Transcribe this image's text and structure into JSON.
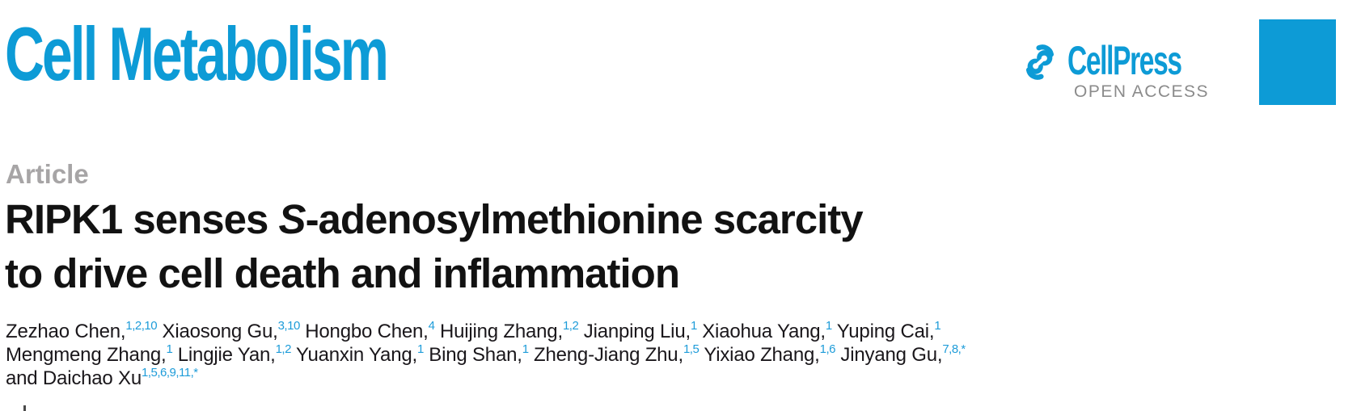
{
  "masthead": {
    "journal_title": "Cell Metabolism",
    "publisher": "CellPress",
    "open_access_label": "OPEN ACCESS"
  },
  "article": {
    "kicker": "Article",
    "title_line1_pre": "RIPK1 senses ",
    "title_line1_italic": "S",
    "title_line1_post": "-adenosylmethionine scarcity",
    "title_line2": "to drive cell death and inflammation"
  },
  "authors": {
    "lines": [
      [
        {
          "name": "Zezhao Chen,",
          "sup": "1,2,10"
        },
        {
          "name": "Xiaosong Gu,",
          "sup": "3,10"
        },
        {
          "name": "Hongbo Chen,",
          "sup": "4"
        },
        {
          "name": "Huijing Zhang,",
          "sup": "1,2"
        },
        {
          "name": "Jianping Liu,",
          "sup": "1"
        },
        {
          "name": "Xiaohua Yang,",
          "sup": "1"
        },
        {
          "name": "Yuping Cai,",
          "sup": "1"
        }
      ],
      [
        {
          "name": "Mengmeng Zhang,",
          "sup": "1"
        },
        {
          "name": "Lingjie Yan,",
          "sup": "1,2"
        },
        {
          "name": "Yuanxin Yang,",
          "sup": "1"
        },
        {
          "name": "Bing Shan,",
          "sup": "1"
        },
        {
          "name": "Zheng-Jiang Zhu,",
          "sup": "1,5"
        },
        {
          "name": "Yixiao Zhang,",
          "sup": "1,6"
        },
        {
          "name": "Jinyang Gu,",
          "sup": "7,8,*"
        }
      ],
      [
        {
          "name": "and Daichao Xu",
          "sup": "1,5,6,9,11,*"
        }
      ]
    ]
  },
  "colors": {
    "brand_blue": "#0d9bd6",
    "superscript_blue": "#1e9cd9",
    "kicker_gray": "#a7a5a6",
    "open_access_gray": "#8b8b8b",
    "text_black": "#1a171b"
  }
}
